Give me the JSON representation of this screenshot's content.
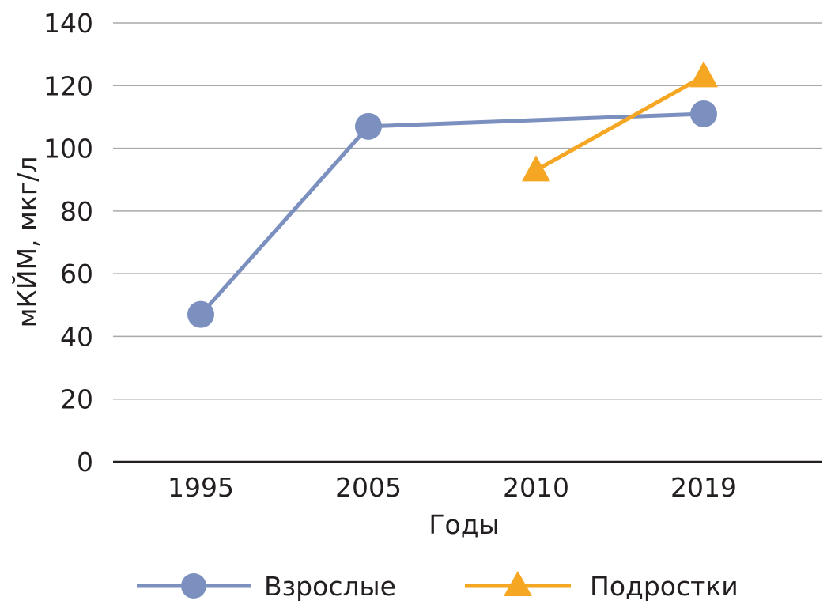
{
  "chart_data": {
    "type": "line",
    "title": "",
    "xlabel": "Годы",
    "ylabel": "мКЙМ, мкг/л",
    "categories": [
      "1995",
      "2005",
      "2010",
      "2019"
    ],
    "ylim": [
      0,
      140
    ],
    "yticks": [
      0,
      20,
      40,
      60,
      80,
      100,
      120,
      140
    ],
    "grid": true,
    "legend_position": "bottom",
    "series": [
      {
        "name": "Взрослые",
        "values": [
          47,
          107,
          null,
          111
        ],
        "color": "#7b90bf",
        "marker": "circle"
      },
      {
        "name": "Подростки",
        "values": [
          null,
          null,
          93,
          123
        ],
        "color": "#f5a623",
        "marker": "triangle"
      }
    ]
  }
}
